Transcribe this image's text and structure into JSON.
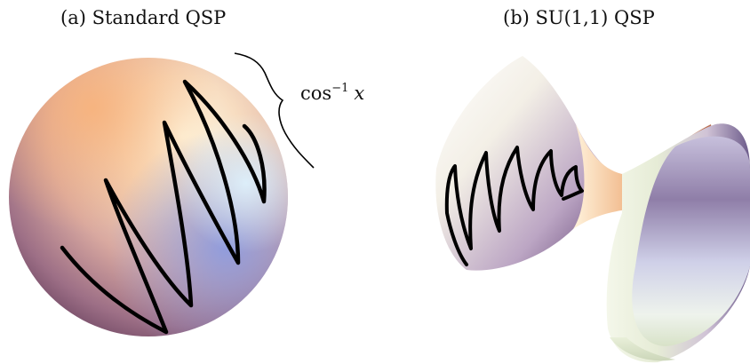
{
  "panel_a": {
    "caption": "(a) Standard QSP",
    "annotation": {
      "base": "cos",
      "exponent": "−1",
      "variable": "x"
    }
  },
  "panel_b": {
    "caption": "(b) SU(1,1) QSP"
  },
  "colors": {
    "trajectory": "#000000",
    "warm": "#f6b37a",
    "cool": "#9aa8dc",
    "dark": "#6a3b5e",
    "highlight": "#fffbe8"
  }
}
